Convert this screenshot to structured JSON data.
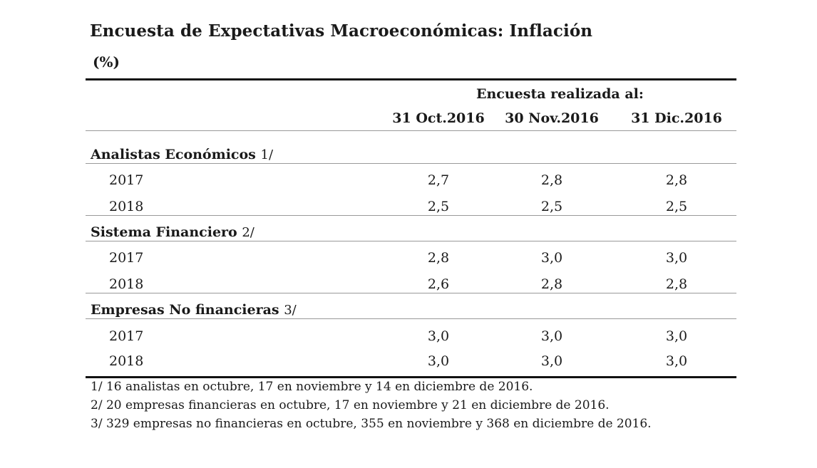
{
  "title": "Encuesta de Expectativas Macroeconómicas: Inflación",
  "subtitle": "(%)",
  "table": {
    "survey_header": "Encuesta realizada al:",
    "columns": [
      "31 Oct.2016",
      "30 Nov.2016",
      "31 Dic.2016"
    ],
    "groups": [
      {
        "label": "Analistas Económicos",
        "note": "1/",
        "rows": [
          {
            "year": "2017",
            "values": [
              "2,7",
              "2,8",
              "2,8"
            ]
          },
          {
            "year": "2018",
            "values": [
              "2,5",
              "2,5",
              "2,5"
            ]
          }
        ]
      },
      {
        "label": "Sistema Financiero",
        "note": "2/",
        "rows": [
          {
            "year": "2017",
            "values": [
              "2,8",
              "3,0",
              "3,0"
            ]
          },
          {
            "year": "2018",
            "values": [
              "2,6",
              "2,8",
              "2,8"
            ]
          }
        ]
      },
      {
        "label": "Empresas No financieras",
        "note": "3/",
        "rows": [
          {
            "year": "2017",
            "values": [
              "3,0",
              "3,0",
              "3,0"
            ]
          },
          {
            "year": "2018",
            "values": [
              "3,0",
              "3,0",
              "3,0"
            ]
          }
        ]
      }
    ]
  },
  "footnotes": [
    "1/ 16 analistas en octubre, 17 en noviembre y 14 en diciembre de 2016.",
    "2/ 20 empresas financieras en octubre, 17 en noviembre y 21 en diciembre de 2016.",
    "3/ 329 empresas no financieras en octubre, 355 en noviembre y 368 en diciembre de 2016."
  ]
}
